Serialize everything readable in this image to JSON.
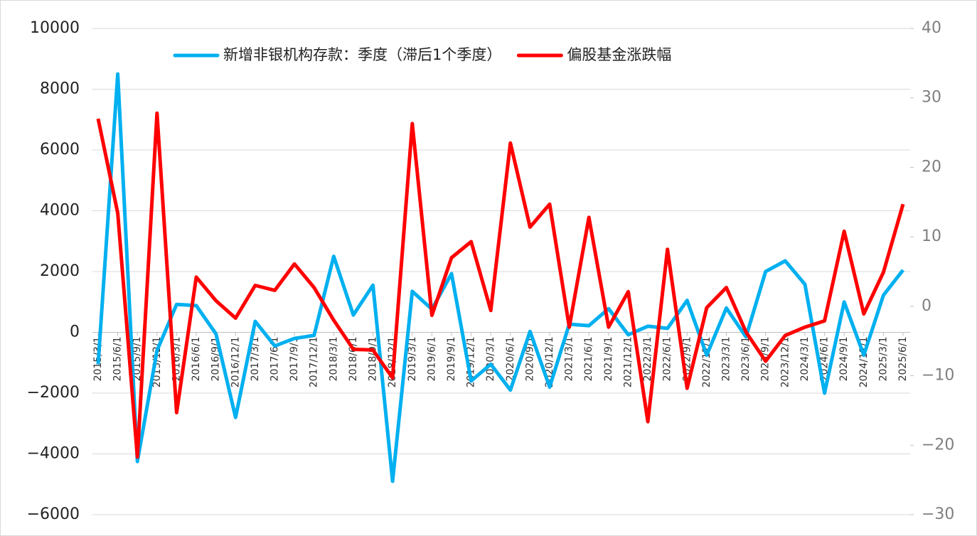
{
  "chart_data": {
    "type": "line",
    "categories": [
      "2015/3/1",
      "2015/6/1",
      "2015/9/1",
      "2015/12/1",
      "2016/3/1",
      "2016/6/1",
      "2016/9/1",
      "2016/12/1",
      "2017/3/1",
      "2017/6/1",
      "2017/9/1",
      "2017/12/1",
      "2018/3/1",
      "2018/6/1",
      "2018/9/1",
      "2018/12/1",
      "2019/3/1",
      "2019/6/1",
      "2019/9/1",
      "2019/12/1",
      "2020/3/1",
      "2020/6/1",
      "2020/9/1",
      "2020/12/1",
      "2021/3/1",
      "2021/6/1",
      "2021/9/1",
      "2021/12/1",
      "2022/3/1",
      "2022/6/1",
      "2022/9/1",
      "2022/12/1",
      "2023/3/1",
      "2023/6/1",
      "2023/9/1",
      "2023/12/1",
      "2024/3/1",
      "2024/6/1",
      "2024/9/1",
      "2024/12/1",
      "2025/3/1",
      "2025/6/1"
    ],
    "series": [
      {
        "name": "新增非银机构存款：季度（滞后1个季度）",
        "color": "#00b0f0",
        "values": [
          -1050,
          8500,
          -4250,
          -600,
          920,
          880,
          -50,
          -2800,
          360,
          -450,
          -200,
          -100,
          2500,
          570,
          1550,
          -4900,
          1350,
          760,
          1930,
          -1600,
          -1050,
          -1900,
          30,
          -1800,
          270,
          220,
          780,
          -80,
          200,
          130,
          1050,
          -750,
          800,
          -150,
          2000,
          2350,
          1580,
          -2000,
          1000,
          -750,
          1220,
          2050
        ]
      },
      {
        "name": "偏股基金涨跌幅",
        "color": "#ff0000",
        "axis": "y2",
        "values": [
          27,
          13.4,
          -21.7,
          27.8,
          -15.3,
          4.2,
          0.8,
          -1.7,
          3,
          2.3,
          6.1,
          2.7,
          -2,
          -6.2,
          -6.3,
          -10.3,
          26.3,
          -1.3,
          7,
          9.3,
          -0.6,
          23.5,
          11.4,
          14.7,
          -3,
          12.8,
          -3,
          2.1,
          -16.6,
          8.2,
          -11.8,
          -0.2,
          2.7,
          -3.7,
          -7.9,
          -4.2,
          -3,
          -2.1,
          10.8,
          -1.1,
          4.9,
          14.7
        ]
      }
    ],
    "ylim": [
      -6000,
      10000
    ],
    "yticks": [
      {
        "value": -6000,
        "label": "−6000"
      },
      {
        "value": -4000,
        "label": "−4000"
      },
      {
        "value": -2000,
        "label": "−2000"
      },
      0,
      2000,
      4000,
      6000,
      8000,
      10000
    ],
    "y2lim": [
      -30,
      40
    ],
    "y2ticks": [
      {
        "value": -30,
        "label": "−30"
      },
      {
        "value": -20,
        "label": "−20"
      },
      {
        "value": -10,
        "label": "−10"
      },
      0,
      10,
      20,
      30,
      40
    ],
    "grid": true
  }
}
